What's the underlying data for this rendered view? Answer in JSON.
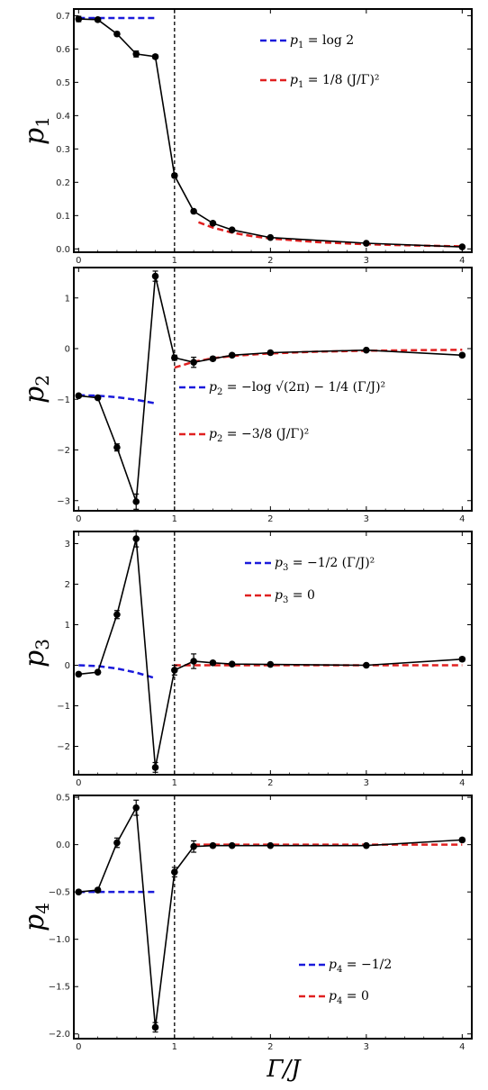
{
  "figure": {
    "x_label": "Γ/J"
  },
  "chart_data": [
    {
      "type": "line",
      "ylabel": "p",
      "ylabel_sub": "1",
      "xlim": [
        -0.05,
        4.1
      ],
      "ylim": [
        -0.01,
        0.72
      ],
      "xticks": [
        "0",
        "1",
        "2",
        "3",
        "4"
      ],
      "xtick_values": [
        0,
        1,
        2,
        3,
        4
      ],
      "yticks": [
        "0.0",
        "0.1",
        "0.2",
        "0.3",
        "0.4",
        "0.5",
        "0.6",
        "0.7"
      ],
      "ytick_values": [
        0,
        0.1,
        0.2,
        0.3,
        0.4,
        0.5,
        0.6,
        0.7
      ],
      "vline": 1,
      "series": [
        {
          "x": [
            0,
            0.2,
            0.4,
            0.6,
            0.8,
            1.0,
            1.2,
            1.4,
            1.6,
            2.0,
            3.0,
            4.0
          ],
          "y": [
            0.69,
            0.688,
            0.645,
            0.585,
            0.577,
            0.22,
            0.113,
            0.077,
            0.057,
            0.034,
            0.017,
            0.006
          ],
          "err": [
            0.008,
            0.006,
            0.006,
            0.009,
            0.006,
            0.006,
            0.005,
            0.004,
            0.003,
            0.003,
            0.003,
            0.004
          ]
        }
      ],
      "curves": [
        {
          "color": "#1a1adb",
          "x": [
            0,
            0.8
          ],
          "y": [
            0.693,
            0.693
          ]
        },
        {
          "color": "#e02020",
          "x": [
            1.25,
            1.4,
            1.6,
            1.8,
            2.0,
            2.5,
            3.0,
            3.5,
            4.0
          ],
          "y": [
            0.08,
            0.0638,
            0.0488,
            0.0386,
            0.03125,
            0.02,
            0.0139,
            0.0102,
            0.0078
          ]
        }
      ],
      "legend": [
        {
          "color": "#1a1adb",
          "lhs": "p",
          "sub": "1",
          "rhs": " = log 2"
        },
        {
          "color": "#e02020",
          "lhs": "p",
          "sub": "1",
          "rhs": " = 1/8 (J/Γ)²"
        }
      ]
    },
    {
      "type": "line",
      "ylabel": "p",
      "ylabel_sub": "2",
      "xlim": [
        -0.05,
        4.1
      ],
      "ylim": [
        -3.2,
        1.6
      ],
      "xticks": [
        "0",
        "1",
        "2",
        "3",
        "4"
      ],
      "xtick_values": [
        0,
        1,
        2,
        3,
        4
      ],
      "yticks": [
        "−3",
        "−2",
        "−1",
        "0",
        "1"
      ],
      "ytick_values": [
        -3,
        -2,
        -1,
        0,
        1
      ],
      "vline": 1,
      "series": [
        {
          "x": [
            0,
            0.2,
            0.4,
            0.6,
            0.8,
            1.0,
            1.2,
            1.4,
            1.6,
            2.0,
            3.0,
            4.0
          ],
          "y": [
            -0.93,
            -0.97,
            -1.95,
            -3.02,
            1.43,
            -0.18,
            -0.27,
            -0.2,
            -0.13,
            -0.08,
            -0.03,
            -0.13
          ],
          "err": [
            0.03,
            0.03,
            0.07,
            0.15,
            0.1,
            0.05,
            0.1,
            0.04,
            0.03,
            0.03,
            0.02,
            0.03
          ]
        }
      ],
      "curves": [
        {
          "color": "#1a1adb",
          "x": [
            0,
            0.2,
            0.4,
            0.6,
            0.8
          ],
          "y": [
            -0.919,
            -0.929,
            -0.959,
            -1.009,
            -1.079
          ]
        },
        {
          "color": "#e02020",
          "x": [
            1.0,
            1.2,
            1.4,
            1.6,
            2.0,
            2.5,
            3.0,
            3.5,
            4.0
          ],
          "y": [
            -0.375,
            -0.26,
            -0.19,
            -0.146,
            -0.094,
            -0.06,
            -0.042,
            -0.031,
            -0.023
          ]
        }
      ],
      "legend": [
        {
          "color": "#1a1adb",
          "lhs": "p",
          "sub": "2",
          "rhs": " = −log √(2π) − 1/4 (Γ/J)²"
        },
        {
          "color": "#e02020",
          "lhs": "p",
          "sub": "2",
          "rhs": " = −3/8 (J/Γ)²"
        }
      ]
    },
    {
      "type": "line",
      "ylabel": "p",
      "ylabel_sub": "3",
      "xlim": [
        -0.05,
        4.1
      ],
      "ylim": [
        -2.7,
        3.3
      ],
      "xticks": [
        "0",
        "1",
        "2",
        "3",
        "4"
      ],
      "xtick_values": [
        0,
        1,
        2,
        3,
        4
      ],
      "yticks": [
        "−2",
        "−1",
        "0",
        "1",
        "2",
        "3"
      ],
      "ytick_values": [
        -2,
        -1,
        0,
        1,
        2,
        3
      ],
      "vline": 1,
      "series": [
        {
          "x": [
            0,
            0.2,
            0.4,
            0.6,
            0.8,
            1.0,
            1.2,
            1.4,
            1.6,
            2.0,
            3.0,
            4.0
          ],
          "y": [
            -0.22,
            -0.17,
            1.25,
            3.12,
            -2.52,
            -0.12,
            0.1,
            0.06,
            0.03,
            0.02,
            0.0,
            0.15
          ],
          "err": [
            0.03,
            0.03,
            0.1,
            0.2,
            0.12,
            0.12,
            0.18,
            0.04,
            0.03,
            0.03,
            0.03,
            0.05
          ]
        }
      ],
      "curves": [
        {
          "color": "#1a1adb",
          "x": [
            0,
            0.2,
            0.4,
            0.6,
            0.8
          ],
          "y": [
            0,
            -0.02,
            -0.08,
            -0.18,
            -0.32
          ]
        },
        {
          "color": "#e02020",
          "x": [
            1.0,
            4.0
          ],
          "y": [
            0,
            0
          ]
        }
      ],
      "legend": [
        {
          "color": "#1a1adb",
          "lhs": "p",
          "sub": "3",
          "rhs": " = −1/2 (Γ/J)²"
        },
        {
          "color": "#e02020",
          "lhs": "p",
          "sub": "3",
          "rhs": " = 0"
        }
      ]
    },
    {
      "type": "line",
      "ylabel": "p",
      "ylabel_sub": "4",
      "xlim": [
        -0.05,
        4.1
      ],
      "ylim": [
        -2.05,
        0.52
      ],
      "xticks": [
        "0",
        "1",
        "2",
        "3",
        "4"
      ],
      "xtick_values": [
        0,
        1,
        2,
        3,
        4
      ],
      "yticks": [
        "−2.0",
        "−1.5",
        "−1.0",
        "−0.5",
        "0.0",
        "0.5"
      ],
      "ytick_values": [
        -2,
        -1.5,
        -1,
        -0.5,
        0,
        0.5
      ],
      "vline": 1,
      "series": [
        {
          "x": [
            0,
            0.2,
            0.4,
            0.6,
            0.8,
            1.0,
            1.2,
            1.4,
            1.6,
            2.0,
            3.0,
            4.0
          ],
          "y": [
            -0.5,
            -0.48,
            0.02,
            0.39,
            -1.93,
            -0.29,
            -0.02,
            -0.01,
            -0.01,
            -0.01,
            -0.01,
            0.05
          ],
          "err": [
            0.02,
            0.02,
            0.05,
            0.08,
            0.05,
            0.05,
            0.06,
            0.02,
            0.01,
            0.01,
            0.01,
            0.02
          ]
        }
      ],
      "curves": [
        {
          "color": "#1a1adb",
          "x": [
            0,
            0.8
          ],
          "y": [
            -0.5,
            -0.5
          ]
        },
        {
          "color": "#e02020",
          "x": [
            1.2,
            4.0
          ],
          "y": [
            0,
            0
          ]
        }
      ],
      "legend": [
        {
          "color": "#1a1adb",
          "lhs": "p",
          "sub": "4",
          "rhs": " = −1/2"
        },
        {
          "color": "#e02020",
          "lhs": "p",
          "sub": "4",
          "rhs": " = 0"
        }
      ]
    }
  ]
}
